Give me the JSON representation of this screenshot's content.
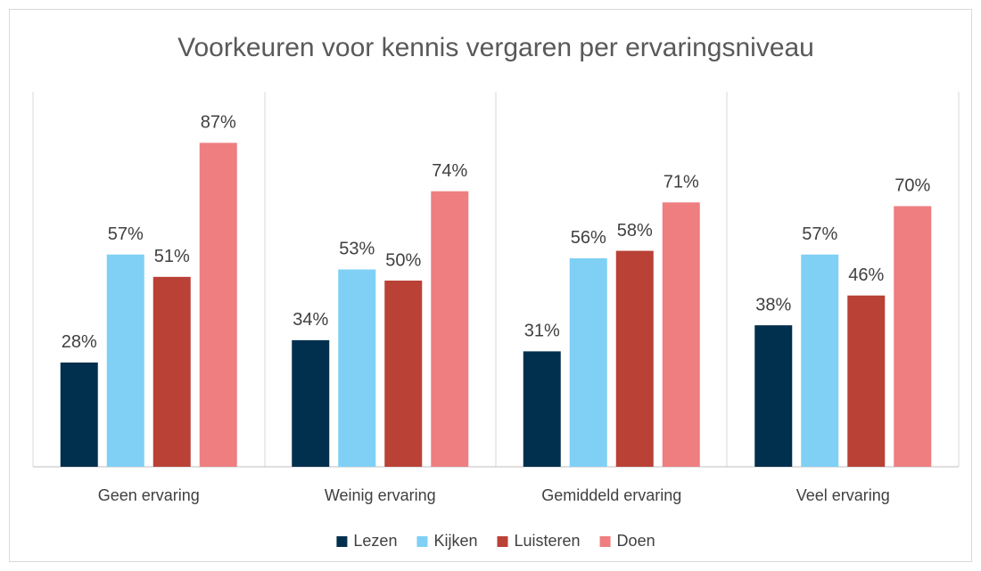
{
  "chart_data": {
    "type": "bar",
    "title": "Voorkeuren voor kennis vergaren per ervaringsniveau",
    "categories": [
      "Geen ervaring",
      "Weinig ervaring",
      "Gemiddeld ervaring",
      "Veel ervaring"
    ],
    "series": [
      {
        "name": "Lezen",
        "color": "#00304e",
        "values": [
          28,
          34,
          31,
          38
        ],
        "value_labels": [
          "28%",
          "34%",
          "31%",
          "38%"
        ]
      },
      {
        "name": "Kijken",
        "color": "#7fd0f4",
        "values": [
          57,
          53,
          56,
          57
        ],
        "value_labels": [
          "57%",
          "53%",
          "56%",
          "57%"
        ]
      },
      {
        "name": "Luisteren",
        "color": "#b94136",
        "values": [
          51,
          50,
          58,
          46
        ],
        "value_labels": [
          "51%",
          "50%",
          "58%",
          "46%"
        ]
      },
      {
        "name": "Doen",
        "color": "#ee7e80",
        "values": [
          87,
          74,
          71,
          70
        ],
        "value_labels": [
          "87%",
          "74%",
          "71%",
          "70%"
        ]
      }
    ],
    "ylim": [
      0,
      100
    ],
    "legend": "bottom"
  }
}
